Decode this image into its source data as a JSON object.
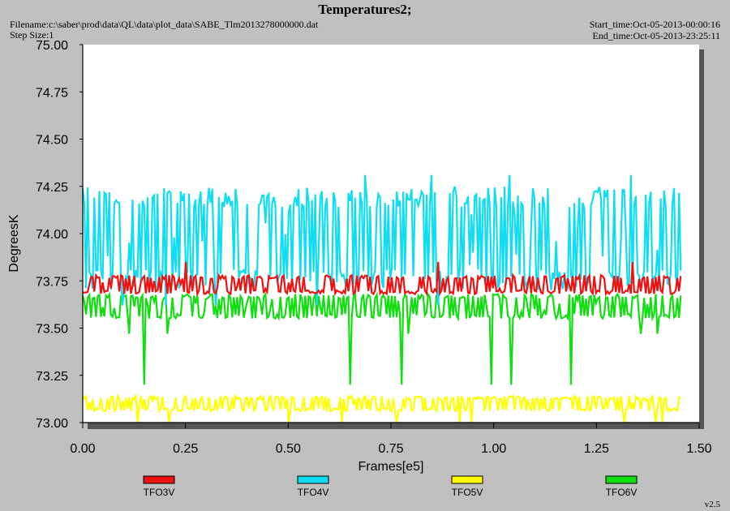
{
  "header": {
    "title": "Temperatures2;",
    "filename": "Filename:c:\\saber\\prod\\data\\QL\\data\\plot_data\\SABE_Tlm2013278000000.dat",
    "step_size": "Step Size:1",
    "start_time": "Start_time:Oct-05-2013-00:00:16",
    "end_time": "End_time:Oct-05-2013-23:25:11"
  },
  "version": "v2.5",
  "chart_data": {
    "type": "line",
    "title": "Temperatures2;",
    "xlabel": "Frames[e5]",
    "ylabel": "DegreesK",
    "xlim": [
      0,
      1.5
    ],
    "ylim": [
      73.0,
      75.0
    ],
    "x_ticks": [
      "0.00",
      "0.25",
      "0.50",
      "0.75",
      "1.00",
      "1.25",
      "1.50"
    ],
    "y_ticks": [
      "73.00",
      "73.25",
      "73.50",
      "73.75",
      "74.00",
      "74.25",
      "74.50",
      "74.75",
      "75.00"
    ],
    "x_data_range": [
      0,
      1.455
    ],
    "grid": false,
    "legend_position": "bottom",
    "series": [
      {
        "name": "TFO3V",
        "color": "#ee1111",
        "typical_range": [
          73.68,
          73.78
        ],
        "spikes": [
          73.85
        ]
      },
      {
        "name": "TFO4V",
        "color": "#11ddf2",
        "typical_range": [
          73.7,
          74.25
        ],
        "spikes": [
          74.31,
          73.62
        ]
      },
      {
        "name": "TFO5V",
        "color": "#ffff00",
        "typical_range": [
          73.06,
          73.14
        ],
        "spikes": [
          73.0
        ]
      },
      {
        "name": "TFO6V",
        "color": "#11dd11",
        "typical_range": [
          73.55,
          73.68
        ],
        "spikes": [
          73.2,
          73.47
        ]
      }
    ]
  }
}
